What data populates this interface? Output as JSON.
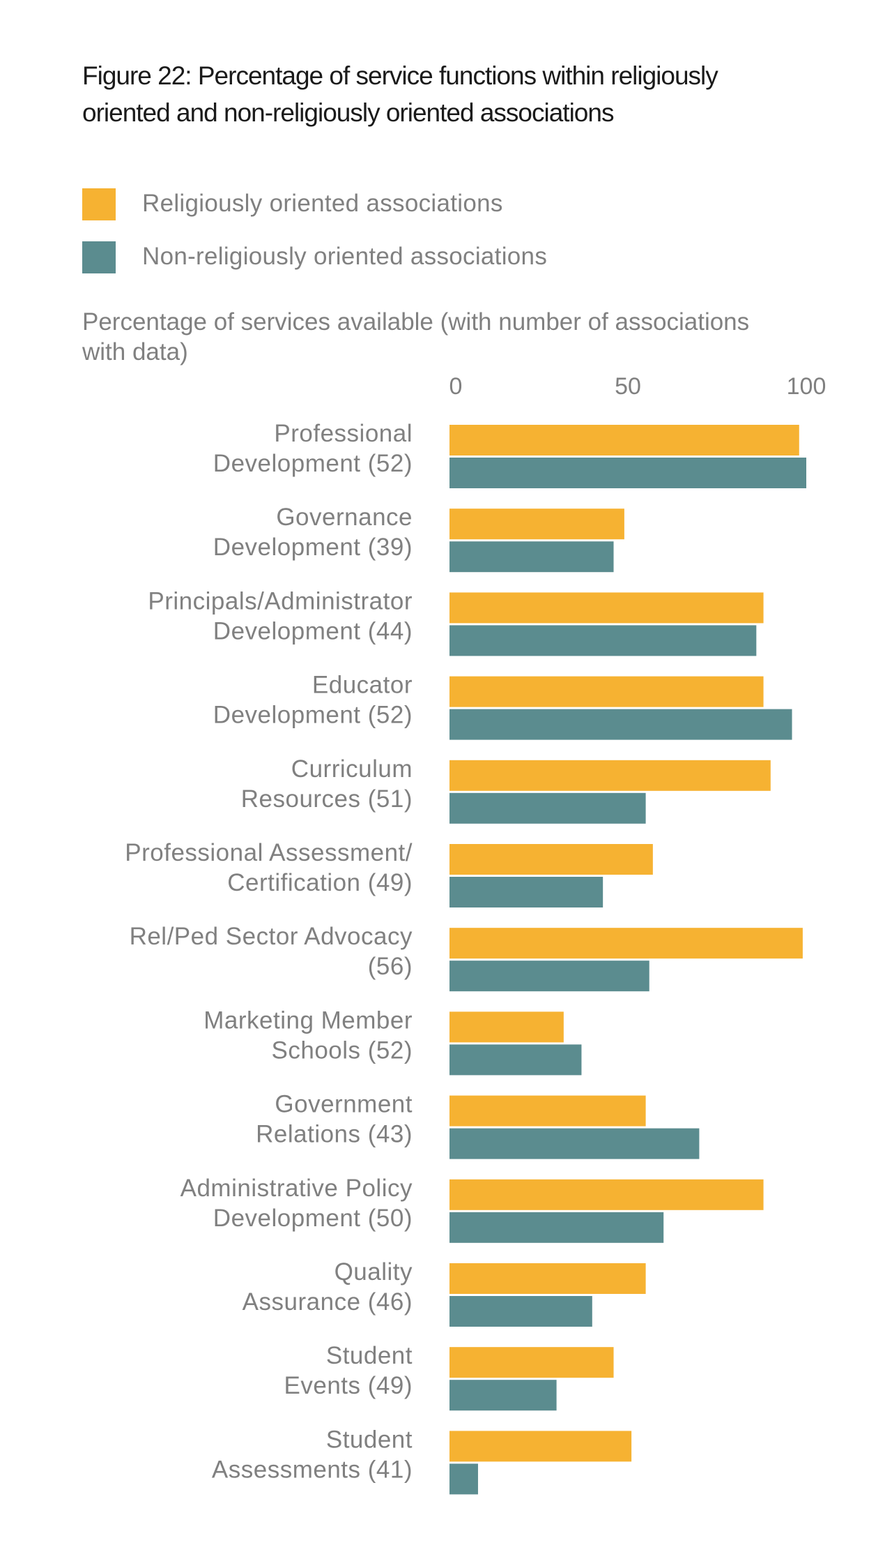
{
  "chart_data": {
    "type": "bar",
    "orientation": "horizontal",
    "title": "Figure 22: Percentage of service functions within religiously oriented and non-religiously oriented associations",
    "xlabel": "Percentage of services available (with number of associations with data)",
    "ylabel": "",
    "xlim": [
      0,
      100
    ],
    "xticks": [
      "0",
      "50",
      "100"
    ],
    "grid": false,
    "legend_position": "top-left",
    "categories": [
      [
        "Professional",
        "Development (52)"
      ],
      [
        "Governance",
        "Development (39)"
      ],
      [
        "Principals/Administrator",
        "Development (44)"
      ],
      [
        "Educator",
        "Development (52)"
      ],
      [
        "Curriculum",
        "Resources (51)"
      ],
      [
        "Professional Assessment/",
        "Certification (49)"
      ],
      [
        "Rel/Ped Sector Advocacy",
        "(56)"
      ],
      [
        "Marketing Member",
        "Schools (52)"
      ],
      [
        "Government",
        "Relations (43)"
      ],
      [
        "Administrative Policy",
        "Development (50)"
      ],
      [
        "Quality",
        "Assurance (46)"
      ],
      [
        "Student",
        "Events (49)"
      ],
      [
        "Student",
        "Assessments (41)"
      ]
    ],
    "series": [
      {
        "name": "Religiously oriented associations",
        "color": "#F6B232",
        "values": [
          98,
          49,
          88,
          88,
          90,
          57,
          99,
          32,
          55,
          88,
          55,
          46,
          51
        ]
      },
      {
        "name": "Non-religiously oriented associations",
        "color": "#5B8C8F",
        "values": [
          100,
          46,
          86,
          96,
          55,
          43,
          56,
          37,
          70,
          60,
          40,
          30,
          8
        ]
      }
    ]
  }
}
